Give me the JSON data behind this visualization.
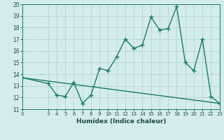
{
  "xlabel": "Humidex (Indice chaleur)",
  "line1_x": [
    0,
    3,
    4,
    5,
    6,
    7,
    8,
    9,
    10,
    11,
    12,
    13,
    14,
    15,
    16,
    17,
    18,
    19,
    20,
    21,
    22,
    23
  ],
  "line1_y": [
    13.7,
    13.2,
    12.2,
    12.1,
    13.3,
    11.5,
    12.2,
    14.5,
    14.3,
    15.5,
    17.0,
    16.2,
    16.5,
    18.9,
    17.8,
    17.9,
    19.8,
    15.0,
    14.3,
    17.0,
    12.1,
    11.5
  ],
  "line2_x": [
    0,
    23
  ],
  "line2_y": [
    13.7,
    11.5
  ],
  "line_color": "#1a7a6a",
  "bg_color": "#d4edec",
  "grid_color": "#b8d8d4",
  "ylim": [
    11,
    20
  ],
  "yticks": [
    11,
    12,
    13,
    14,
    15,
    16,
    17,
    18,
    19,
    20
  ],
  "xticks": [
    0,
    3,
    4,
    5,
    6,
    7,
    8,
    9,
    10,
    11,
    12,
    13,
    14,
    15,
    16,
    17,
    18,
    19,
    20,
    21,
    22,
    23
  ],
  "xlim": [
    0,
    23
  ]
}
